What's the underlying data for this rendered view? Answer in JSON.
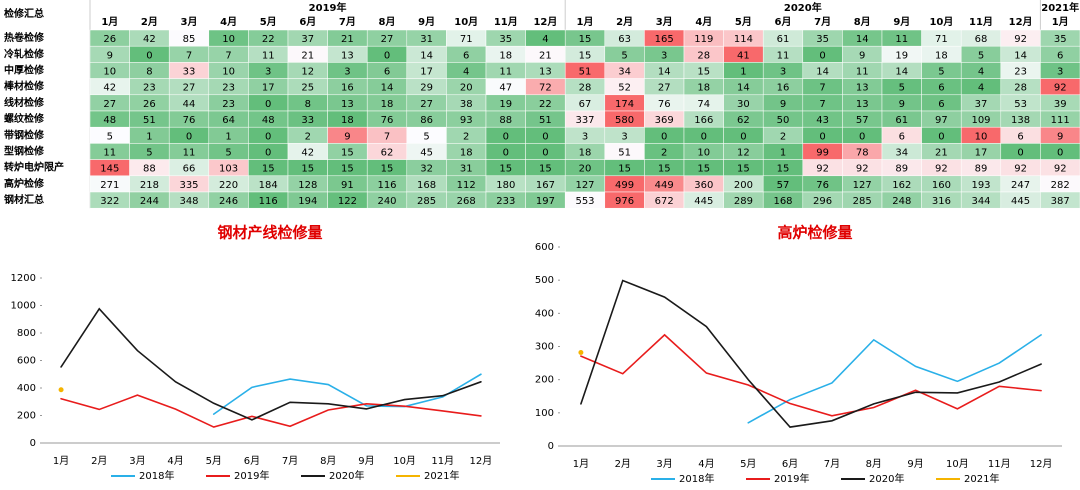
{
  "table": {
    "corner": "检修汇总",
    "years": [
      {
        "label": "2019年",
        "months": [
          "1月",
          "2月",
          "3月",
          "4月",
          "5月",
          "6月",
          "7月",
          "8月",
          "9月",
          "10月",
          "11月",
          "12月"
        ]
      },
      {
        "label": "2020年",
        "months": [
          "1月",
          "2月",
          "3月",
          "4月",
          "5月",
          "6月",
          "7月",
          "8月",
          "9月",
          "10月",
          "11月",
          "12月"
        ]
      },
      {
        "label": "2021年",
        "months": [
          "1月"
        ]
      }
    ],
    "rows": [
      {
        "label": "热卷检修",
        "values": [
          26,
          42,
          85,
          10,
          22,
          37,
          21,
          27,
          31,
          71,
          35,
          4,
          15,
          63,
          165,
          119,
          114,
          61,
          35,
          14,
          11,
          71,
          68,
          92,
          35
        ]
      },
      {
        "label": "冷轧检修",
        "values": [
          9,
          0,
          7,
          7,
          11,
          21,
          13,
          0,
          14,
          6,
          18,
          21,
          15,
          5,
          3,
          28,
          41,
          11,
          0,
          9,
          19,
          18,
          5,
          14,
          6
        ]
      },
      {
        "label": "中厚检修",
        "values": [
          10,
          8,
          33,
          10,
          3,
          12,
          3,
          6,
          17,
          4,
          11,
          13,
          51,
          34,
          14,
          15,
          1,
          3,
          14,
          11,
          14,
          5,
          4,
          23,
          3
        ]
      },
      {
        "label": "棒材检修",
        "values": [
          42,
          23,
          27,
          23,
          17,
          25,
          16,
          14,
          29,
          20,
          47,
          72,
          28,
          52,
          27,
          18,
          14,
          16,
          7,
          13,
          5,
          6,
          4,
          28,
          92
        ]
      },
      {
        "label": "线材检修",
        "values": [
          27,
          26,
          44,
          23,
          0,
          8,
          13,
          18,
          27,
          38,
          19,
          22,
          67,
          174,
          76,
          74,
          30,
          9,
          7,
          13,
          9,
          6,
          37,
          53,
          39
        ]
      },
      {
        "label": "螺纹检修",
        "values": [
          48,
          51,
          76,
          64,
          48,
          33,
          18,
          76,
          86,
          93,
          88,
          51,
          337,
          580,
          369,
          166,
          62,
          50,
          43,
          57,
          61,
          97,
          109,
          138,
          111
        ]
      },
      {
        "label": "带钢检修",
        "values": [
          5,
          1,
          0,
          1,
          0,
          2,
          9,
          7,
          5,
          2,
          0,
          0,
          3,
          3,
          0,
          0,
          0,
          2,
          0,
          0,
          6,
          0,
          10,
          6,
          9
        ]
      },
      {
        "label": "型钢检修",
        "values": [
          11,
          5,
          11,
          5,
          0,
          42,
          15,
          62,
          45,
          18,
          0,
          0,
          18,
          51,
          2,
          10,
          12,
          1,
          99,
          78,
          34,
          21,
          17,
          0,
          0
        ]
      },
      {
        "label": "转炉电炉限产",
        "values": [
          145,
          88,
          66,
          103,
          15,
          15,
          15,
          15,
          32,
          31,
          15,
          15,
          20,
          15,
          15,
          15,
          15,
          15,
          92,
          92,
          89,
          92,
          89,
          92,
          92
        ]
      },
      {
        "label": "高炉检修",
        "values": [
          271,
          218,
          335,
          220,
          184,
          128,
          91,
          116,
          168,
          112,
          180,
          167,
          127,
          499,
          449,
          360,
          200,
          57,
          76,
          127,
          162,
          160,
          193,
          247,
          282
        ]
      },
      {
        "label": "钢材汇总",
        "values": [
          322,
          244,
          348,
          246,
          116,
          194,
          122,
          240,
          285,
          268,
          233,
          197,
          553,
          976,
          672,
          445,
          289,
          168,
          296,
          285,
          248,
          316,
          344,
          445,
          387
        ]
      }
    ]
  },
  "chart_data": [
    {
      "type": "line",
      "title": "钢材产线检修量",
      "categories": [
        "1月",
        "2月",
        "3月",
        "4月",
        "5月",
        "6月",
        "7月",
        "8月",
        "9月",
        "10月",
        "11月",
        "12月"
      ],
      "ylim": [
        0,
        1200
      ],
      "yticks": [
        0,
        200,
        400,
        600,
        800,
        1000,
        1200
      ],
      "legend": "bottom",
      "series": [
        {
          "name": "2018年",
          "color": "#2ab0e8",
          "values": [
            null,
            null,
            null,
            null,
            210,
            405,
            465,
            425,
            270,
            265,
            335,
            500
          ]
        },
        {
          "name": "2019年",
          "color": "#e81c1c",
          "values": [
            322,
            244,
            348,
            246,
            116,
            194,
            122,
            240,
            285,
            268,
            233,
            197
          ]
        },
        {
          "name": "2020年",
          "color": "#1a1a1a",
          "values": [
            553,
            976,
            672,
            445,
            289,
            168,
            296,
            285,
            248,
            316,
            344,
            445
          ]
        },
        {
          "name": "2021年",
          "color": "#f5b400",
          "values": [
            387,
            null,
            null,
            null,
            null,
            null,
            null,
            null,
            null,
            null,
            null,
            null
          ]
        }
      ]
    },
    {
      "type": "line",
      "title": "高炉检修量",
      "categories": [
        "1月",
        "2月",
        "3月",
        "4月",
        "5月",
        "6月",
        "7月",
        "8月",
        "9月",
        "10月",
        "11月",
        "12月"
      ],
      "ylim": [
        0,
        600
      ],
      "yticks": [
        0,
        100,
        200,
        300,
        400,
        500,
        600
      ],
      "legend": "bottom",
      "series": [
        {
          "name": "2018年",
          "color": "#2ab0e8",
          "values": [
            null,
            null,
            null,
            null,
            70,
            140,
            190,
            320,
            240,
            195,
            250,
            335
          ]
        },
        {
          "name": "2019年",
          "color": "#e81c1c",
          "values": [
            271,
            218,
            335,
            220,
            184,
            128,
            91,
            116,
            168,
            112,
            180,
            167
          ]
        },
        {
          "name": "2020年",
          "color": "#1a1a1a",
          "values": [
            127,
            499,
            449,
            360,
            200,
            57,
            76,
            127,
            162,
            160,
            193,
            247
          ]
        },
        {
          "name": "2021年",
          "color": "#f5b400",
          "values": [
            282,
            null,
            null,
            null,
            null,
            null,
            null,
            null,
            null,
            null,
            null,
            null
          ]
        }
      ]
    }
  ]
}
